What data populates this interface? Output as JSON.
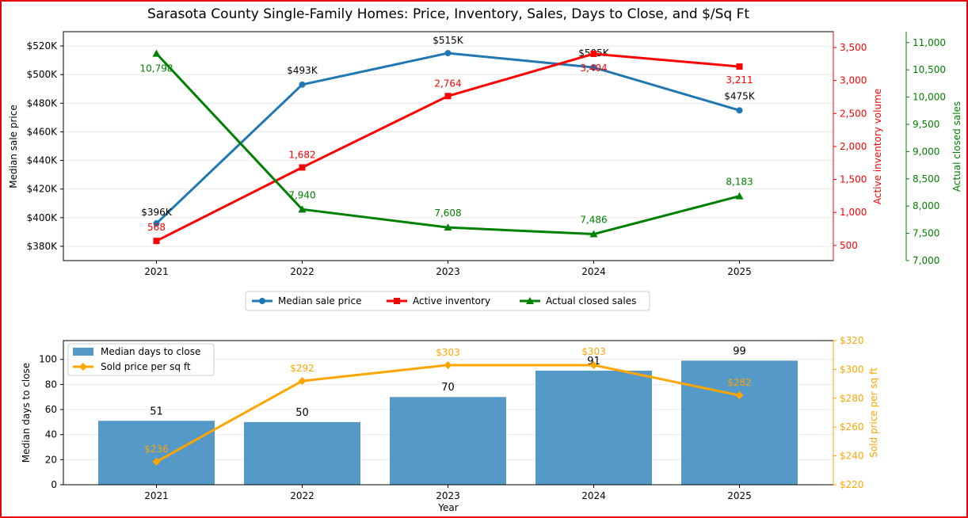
{
  "title": "Sarasota County Single-Family Homes: Price, Inventory, Sales, Days to Close, and $/Sq Ft",
  "colors": {
    "price": "#1f77b4",
    "inventory": "#ff0000",
    "sales": "#008000",
    "bars": "#5499c7",
    "sqft": "#ffa500",
    "grid": "#e8e8e8",
    "border": "#e8000b"
  },
  "chart_data": [
    {
      "type": "line",
      "x": [
        "2021",
        "2022",
        "2023",
        "2024",
        "2025"
      ],
      "ylabel": "Median sale price",
      "y2label": "Active inventory volume",
      "y3label": "Actual closed sales",
      "ylim": [
        370000,
        530000
      ],
      "y2lim": [
        270,
        3740
      ],
      "y3lim": [
        7000,
        11200
      ],
      "y_ticks": [
        "$380K",
        "$400K",
        "$420K",
        "$440K",
        "$460K",
        "$480K",
        "$500K",
        "$520K"
      ],
      "y2_ticks": [
        "500",
        "1,000",
        "1,500",
        "2,000",
        "2,500",
        "3,000",
        "3,500"
      ],
      "y3_ticks": [
        "7,000",
        "7,500",
        "8,000",
        "8,500",
        "9,000",
        "9,500",
        "10,000",
        "10,500",
        "11,000"
      ],
      "grid": true,
      "legend_position": "below",
      "series": [
        {
          "name": "Median sale price",
          "axis": "left",
          "marker": "circle",
          "values": [
            396000,
            493000,
            515000,
            505000,
            475000
          ],
          "labels": [
            "$396K",
            "$493K",
            "$515K",
            "$505K",
            "$475K"
          ]
        },
        {
          "name": "Active inventory",
          "axis": "right",
          "marker": "square",
          "values": [
            568,
            1682,
            2764,
            3404,
            3211
          ],
          "labels": [
            "568",
            "1,682",
            "2,764",
            "3,404",
            "3,211"
          ]
        },
        {
          "name": "Actual closed sales",
          "axis": "right-outer",
          "marker": "triangle",
          "values": [
            10798,
            7940,
            7608,
            7486,
            8183
          ],
          "labels": [
            "10,798",
            "7,940",
            "7,608",
            "7,486",
            "8,183"
          ]
        }
      ]
    },
    {
      "type": "bar",
      "categories": [
        "2021",
        "2022",
        "2023",
        "2024",
        "2025"
      ],
      "xlabel": "Year",
      "ylabel": "Median days to close",
      "y2label": "Sold price per sq ft",
      "ylim": [
        0,
        115
      ],
      "y2lim": [
        220,
        320
      ],
      "y_ticks": [
        "0",
        "20",
        "40",
        "60",
        "80",
        "100"
      ],
      "y2_ticks": [
        "$220",
        "$240",
        "$260",
        "$280",
        "$300",
        "$320"
      ],
      "grid": true,
      "legend_position": "top-left",
      "series": [
        {
          "name": "Median days to close",
          "kind": "bar",
          "axis": "left",
          "values": [
            51,
            50,
            70,
            91,
            99
          ],
          "labels": [
            "51",
            "50",
            "70",
            "91",
            "99"
          ]
        },
        {
          "name": "Sold price per sq ft",
          "kind": "line",
          "axis": "right",
          "marker": "diamond",
          "values": [
            236,
            292,
            303,
            303,
            282
          ],
          "labels": [
            "$236",
            "$292",
            "$303",
            "$303",
            "$282"
          ]
        }
      ]
    }
  ]
}
